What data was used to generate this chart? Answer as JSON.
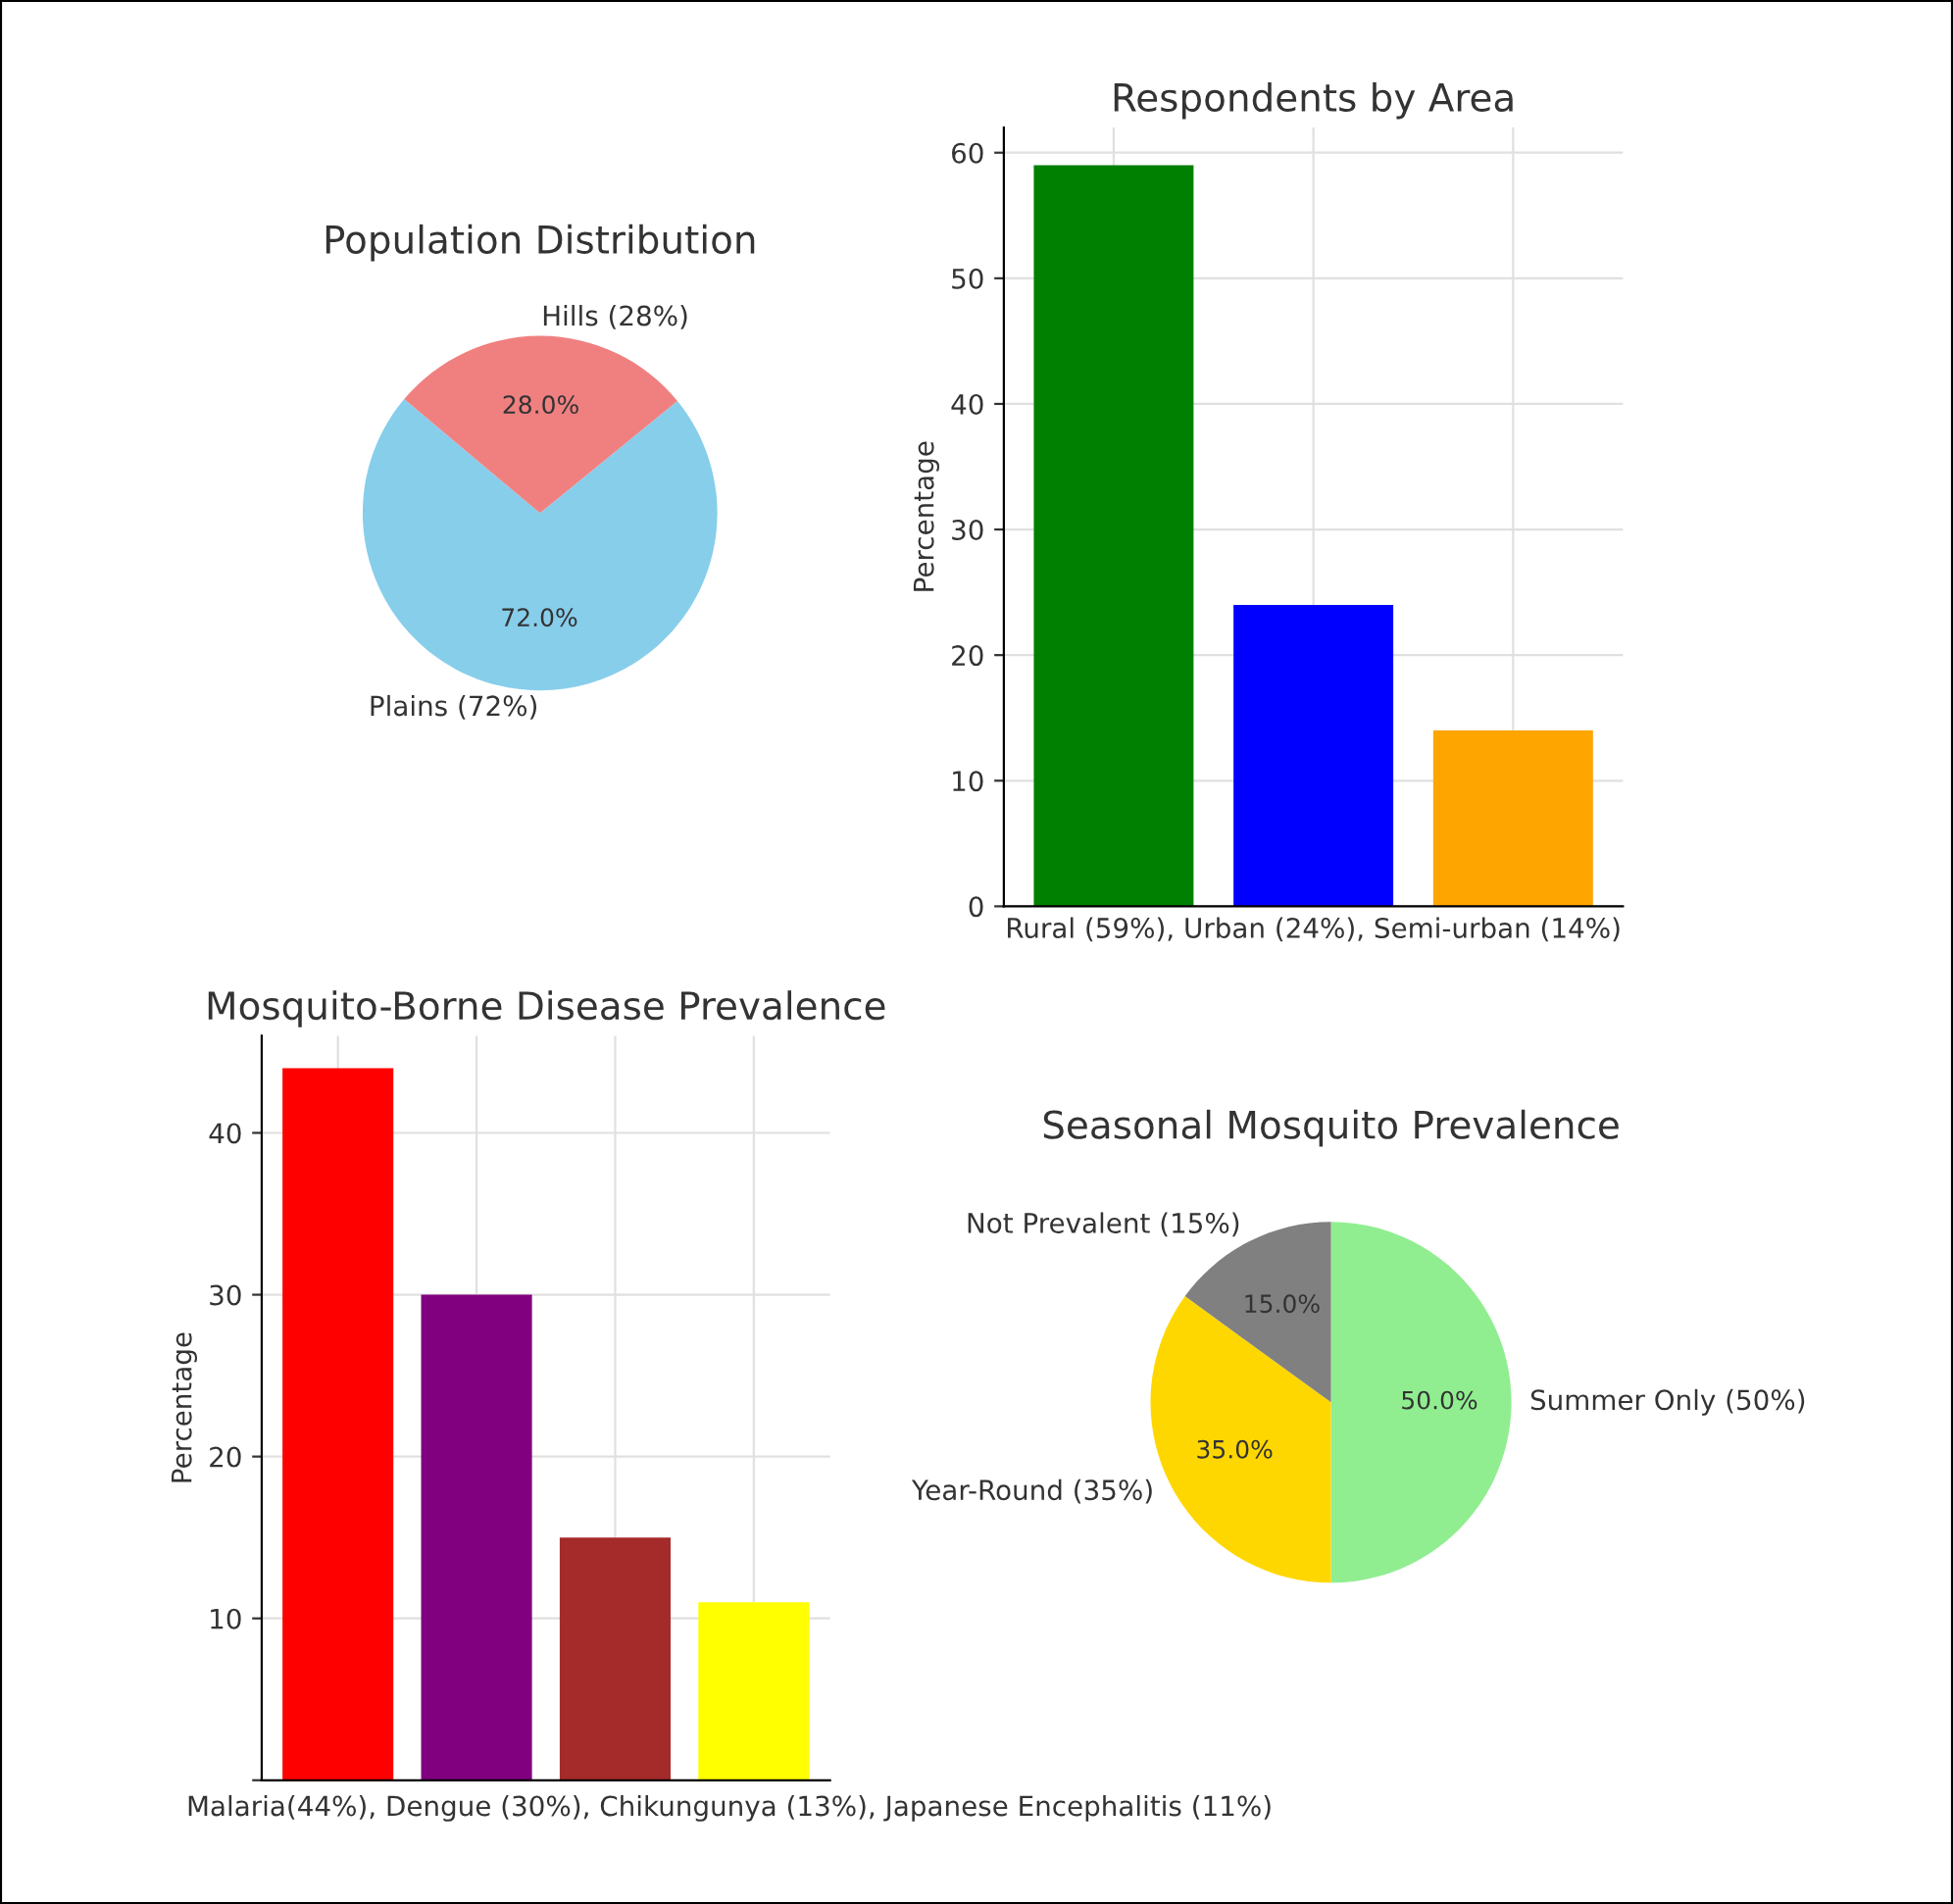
{
  "chart_data": [
    {
      "type": "pie",
      "title": "Population Distribution",
      "categories": [
        "Plains (72%)",
        "Hills (28%)"
      ],
      "values": [
        72,
        28
      ],
      "colors": [
        "#87ceeb",
        "#f08080"
      ],
      "value_labels": [
        "72.0%",
        "28.0%"
      ]
    },
    {
      "type": "bar",
      "title": "Respondents by Area",
      "xlabel": "Rural (59%), Urban (24%), Semi-urban (14%)",
      "ylabel": "Percentage",
      "categories": [
        null,
        null,
        null
      ],
      "values": [
        59,
        24,
        14
      ],
      "colors": [
        "#008000",
        "#0000ff",
        "#ffa500"
      ],
      "ylim": [
        0,
        62
      ],
      "yticks": [
        0,
        10,
        20,
        30,
        40,
        50,
        60
      ],
      "grid": true,
      "tick_labels": "y"
    },
    {
      "type": "bar",
      "title": "Mosquito-Borne Disease Prevalence",
      "xlabel": "Malaria(44%), Dengue (30%), Chikungunya (13%), Japanese Encephalitis (11%)",
      "ylabel": "Percentage",
      "categories": [
        null,
        null,
        null,
        null
      ],
      "values": [
        44,
        30,
        15,
        11
      ],
      "colors": [
        "#ff0000",
        "#800080",
        "#a52a2a",
        "#ffff00"
      ],
      "ylim": [
        0,
        46
      ],
      "yticks": [
        {
          "value": 0,
          "label": null
        },
        10,
        20,
        30,
        40
      ],
      "grid": true,
      "tick_labels": "y"
    },
    {
      "type": "pie",
      "title": "Seasonal Mosquito Prevalence",
      "categories": [
        "Summer Only (50%)",
        "Year-Round (35%)",
        "Not Prevalent (15%)"
      ],
      "values": [
        50,
        35,
        15
      ],
      "colors": [
        "#90ee90",
        "#ffd700",
        "#808080"
      ],
      "value_labels": [
        "50.0%",
        "35.0%",
        "15.0%"
      ]
    }
  ]
}
